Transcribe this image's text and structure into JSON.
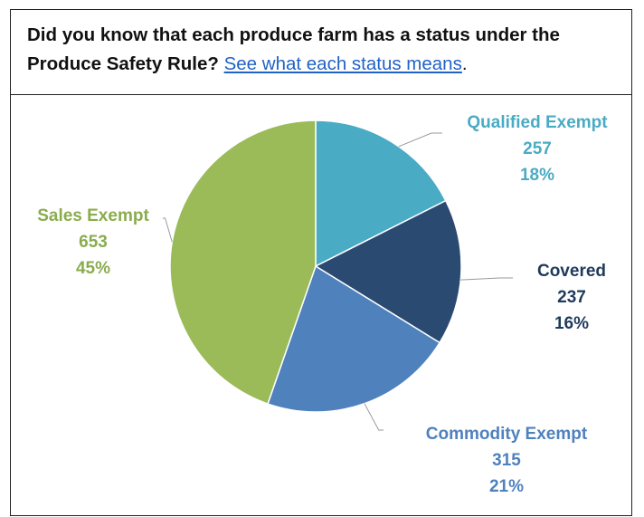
{
  "header": {
    "question": "Did you know that each produce farm has a status under the Produce Safety Rule?",
    "link_text": "See what each status means",
    "trailing_punct": "."
  },
  "chart_data": {
    "type": "pie",
    "title": "",
    "slices": [
      {
        "name": "Qualified Exempt",
        "value": 257,
        "percent": "18%",
        "color": "#4aabc4"
      },
      {
        "name": "Covered",
        "value": 237,
        "percent": "16%",
        "color": "#2a4a72"
      },
      {
        "name": "Commodity Exempt",
        "value": 315,
        "percent": "21%",
        "color": "#4f81bd"
      },
      {
        "name": "Sales Exempt",
        "value": 653,
        "percent": "45%",
        "color": "#9bbb59"
      }
    ],
    "label_colors": {
      "Qualified Exempt": "#4aabc4",
      "Covered": "#1f3a5c",
      "Commodity Exempt": "#4f81bd",
      "Sales Exempt": "#8aac4e"
    },
    "start_angle_deg": 0,
    "direction": "clockwise"
  }
}
